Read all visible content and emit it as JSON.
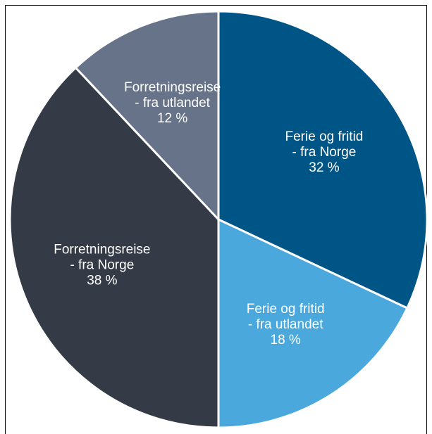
{
  "chart_data": {
    "type": "pie",
    "categories": [
      [
        "Ferie og fritid",
        "- fra Norge"
      ],
      [
        "Ferie og fritid",
        "- fra utlandet"
      ],
      [
        "Forretningsreise",
        "- fra Norge"
      ],
      [
        "Forretningsreise",
        "- fra utlandet"
      ]
    ],
    "values": [
      32,
      18,
      38,
      12
    ],
    "value_labels": [
      "32 %",
      "18 %",
      "38 %",
      "12 %"
    ],
    "colors": [
      "#005587",
      "#4aa8dd",
      "#343a46",
      "#677389"
    ]
  }
}
